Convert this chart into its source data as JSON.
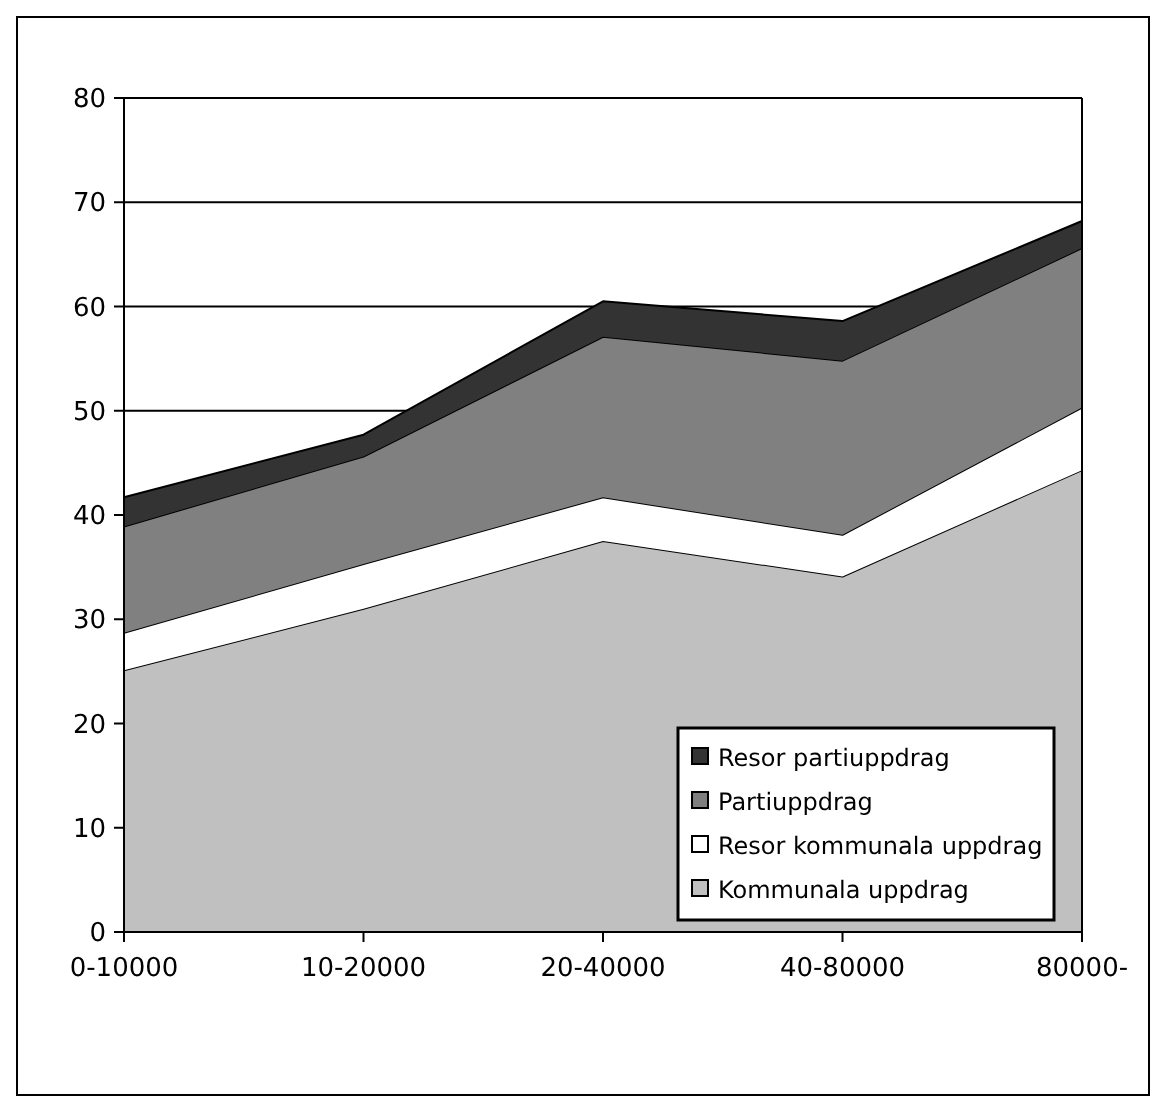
{
  "chart_data": {
    "type": "area",
    "stacked": true,
    "categories": [
      "0-10000",
      "10-20000",
      "20-40000",
      "40-80000",
      "80000-"
    ],
    "series": [
      {
        "name": "Kommunala uppdrag",
        "color": "#c0c0c0",
        "values": [
          25.1,
          31,
          37.5,
          34.1,
          44.3
        ]
      },
      {
        "name": "Resor kommunala uppdrag",
        "color": "#ffffff",
        "values": [
          3.6,
          4.3,
          4.2,
          4,
          6
        ]
      },
      {
        "name": "Partiuppdrag",
        "color": "#808080",
        "values": [
          10.2,
          10.3,
          15.4,
          16.7,
          15.3
        ]
      },
      {
        "name": "Resor partiuppdrag",
        "color": "#333333",
        "values": [
          2.8,
          2.1,
          3.4,
          3.8,
          2.6
        ]
      }
    ],
    "ylim": [
      0,
      80
    ],
    "yticks": [
      0,
      10,
      20,
      30,
      40,
      50,
      60,
      70,
      80
    ],
    "grid": "y",
    "legend": "bottom right"
  }
}
